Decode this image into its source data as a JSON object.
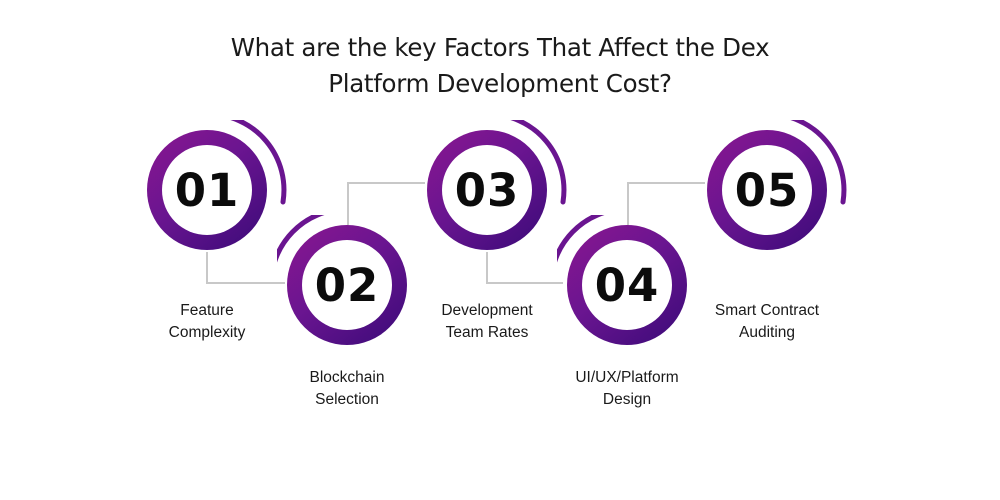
{
  "title": {
    "line1": "What are the key Factors That Affect the Dex",
    "line2": "Platform Development Cost?"
  },
  "steps": [
    {
      "number": "01",
      "label_line1": "Feature",
      "label_line2": "Complexity"
    },
    {
      "number": "02",
      "label_line1": "Blockchain",
      "label_line2": "Selection"
    },
    {
      "number": "03",
      "label_line1": "Development",
      "label_line2": "Team Rates"
    },
    {
      "number": "04",
      "label_line1": "UI/UX/Platform",
      "label_line2": "Design"
    },
    {
      "number": "05",
      "label_line1": "Smart Contract",
      "label_line2": "Auditing"
    }
  ],
  "colors": {
    "ring_start": "#8a1690",
    "ring_end": "#3a0a78",
    "arc": "#6a1590",
    "connector": "#c8c8c8"
  }
}
